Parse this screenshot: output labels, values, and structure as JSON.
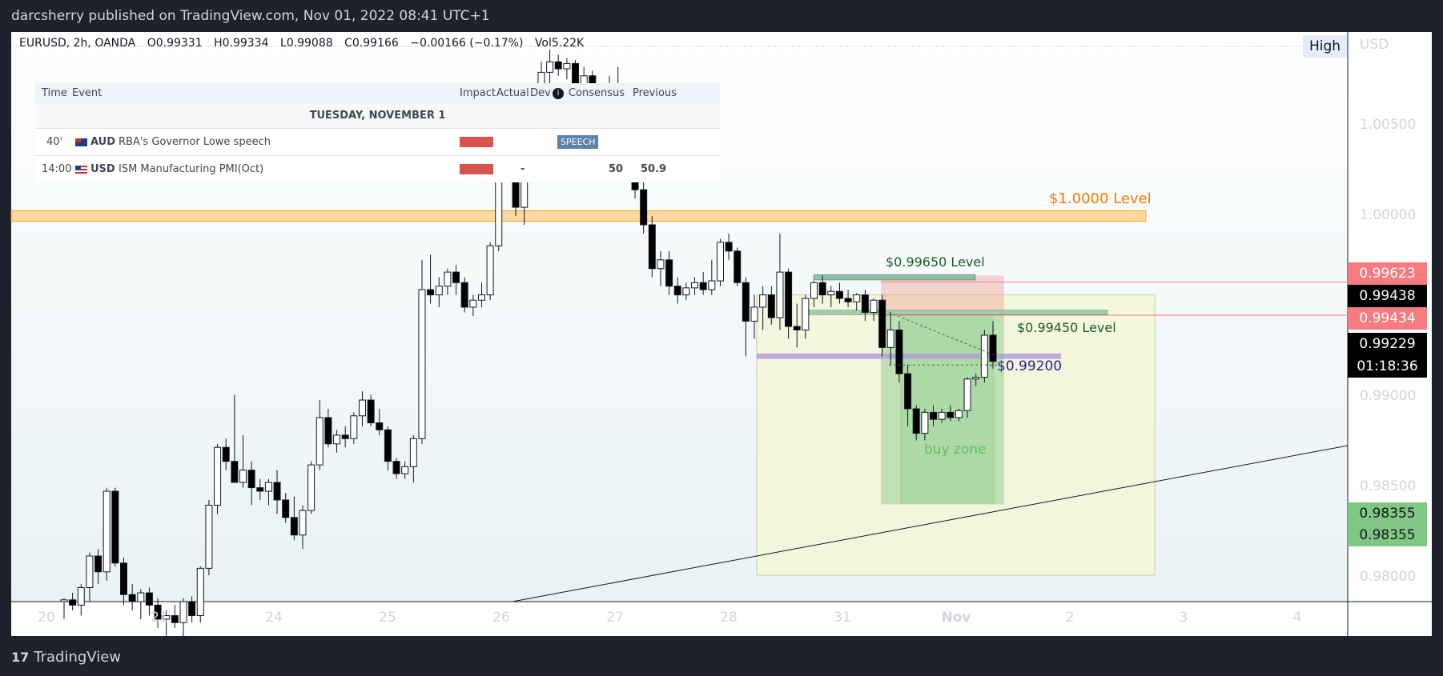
{
  "header": {
    "publisher_line": "darcsherry published on TradingView.com, Nov 01, 2022 08:41 UTC+1"
  },
  "legend": {
    "symbol": "EURUSD, 2h, OANDA",
    "open": "O0.99331",
    "high": "H0.99334",
    "low": "L0.99088",
    "close": "C0.99166",
    "change": "−0.00166 (−0.17%)",
    "volume": "Vol5.22K"
  },
  "events_table": {
    "headers": {
      "time": "Time",
      "event": "Event",
      "impact": "Impact",
      "actual": "Actual",
      "dev": "Dev",
      "consensus": "Consensus",
      "previous": "Previous"
    },
    "day": "TUESDAY, NOVEMBER 1",
    "rows": [
      {
        "time": "40'",
        "currency": "AUD",
        "event": "RBA's Governor Lowe speech",
        "tag": "SPEECH",
        "actual": "",
        "consensus": "",
        "previous": ""
      },
      {
        "time": "14:00",
        "currency": "USD",
        "event": "ISM Manufacturing PMI(Oct)",
        "tag": "",
        "actual": "-",
        "consensus": "50",
        "previous": "50.9"
      }
    ]
  },
  "toggle": {
    "high_label": "High"
  },
  "axis": {
    "currency": "USD"
  },
  "chart_data": {
    "type": "candlestick",
    "timeframe": "2h",
    "ylim": [
      0.978,
      1.0105
    ],
    "y_ticks": [
      "1.00500",
      "1.00000",
      "0.99000",
      "0.98500",
      "0.98000"
    ],
    "x_ticks": [
      "20",
      "21",
      "24",
      "25",
      "26",
      "27",
      "28",
      "31",
      "Nov",
      "2",
      "3",
      "4"
    ],
    "price_tags": [
      {
        "value": "0.99623",
        "color": "#f77c80"
      },
      {
        "value": "0.99438",
        "color": "#000000"
      },
      {
        "value": "0.99434",
        "color": "#f77c80"
      },
      {
        "value": "0.99229",
        "color": "#000000"
      },
      {
        "value": "01:18:36",
        "color": "#000000"
      },
      {
        "value": "0.98355",
        "color": "#81c784"
      },
      {
        "value": "0.98355",
        "color": "#81c784"
      }
    ],
    "levels": [
      {
        "label": "$1.0000 Level",
        "price": 1.0,
        "color": "#f57c00"
      },
      {
        "label": "$0.99650 Level",
        "price": 0.9965,
        "color": "#1b5e20"
      },
      {
        "label": "$0.99450 Level",
        "price": 0.9945,
        "color": "#1b5e20"
      },
      {
        "label": "$0.99200",
        "price": 0.992,
        "color": "#311b92"
      }
    ],
    "zone_label": "buy zone",
    "candles": [
      {
        "o": 0.978,
        "h": 0.9782,
        "l": 0.977,
        "c": 0.9781
      },
      {
        "o": 0.9781,
        "h": 0.9785,
        "l": 0.9775,
        "c": 0.9778
      },
      {
        "o": 0.9778,
        "h": 0.979,
        "l": 0.9772,
        "c": 0.9788
      },
      {
        "o": 0.9788,
        "h": 0.9808,
        "l": 0.978,
        "c": 0.9806
      },
      {
        "o": 0.9806,
        "h": 0.981,
        "l": 0.979,
        "c": 0.9797
      },
      {
        "o": 0.9797,
        "h": 0.9845,
        "l": 0.9792,
        "c": 0.9843
      },
      {
        "o": 0.9843,
        "h": 0.9845,
        "l": 0.98,
        "c": 0.9802
      },
      {
        "o": 0.9802,
        "h": 0.9805,
        "l": 0.9778,
        "c": 0.9784
      },
      {
        "o": 0.9784,
        "h": 0.979,
        "l": 0.9775,
        "c": 0.978
      },
      {
        "o": 0.978,
        "h": 0.9787,
        "l": 0.977,
        "c": 0.9785
      },
      {
        "o": 0.9785,
        "h": 0.9788,
        "l": 0.9772,
        "c": 0.9778
      },
      {
        "o": 0.9778,
        "h": 0.9782,
        "l": 0.9765,
        "c": 0.977
      },
      {
        "o": 0.977,
        "h": 0.9775,
        "l": 0.976,
        "c": 0.9772
      },
      {
        "o": 0.9772,
        "h": 0.9778,
        "l": 0.9765,
        "c": 0.9768
      },
      {
        "o": 0.9768,
        "h": 0.9782,
        "l": 0.976,
        "c": 0.978
      },
      {
        "o": 0.978,
        "h": 0.9783,
        "l": 0.9768,
        "c": 0.9772
      },
      {
        "o": 0.9772,
        "h": 0.98,
        "l": 0.9768,
        "c": 0.9799
      },
      {
        "o": 0.9799,
        "h": 0.9838,
        "l": 0.9795,
        "c": 0.9835
      },
      {
        "o": 0.9835,
        "h": 0.987,
        "l": 0.983,
        "c": 0.9868
      },
      {
        "o": 0.9868,
        "h": 0.9873,
        "l": 0.9855,
        "c": 0.986
      },
      {
        "o": 0.986,
        "h": 0.9898,
        "l": 0.985,
        "c": 0.9848
      },
      {
        "o": 0.9848,
        "h": 0.9875,
        "l": 0.9845,
        "c": 0.9855
      },
      {
        "o": 0.9855,
        "h": 0.986,
        "l": 0.9835,
        "c": 0.9845
      },
      {
        "o": 0.9845,
        "h": 0.985,
        "l": 0.9838,
        "c": 0.9843
      },
      {
        "o": 0.9843,
        "h": 0.985,
        "l": 0.9835,
        "c": 0.9848
      },
      {
        "o": 0.9848,
        "h": 0.9855,
        "l": 0.983,
        "c": 0.9838
      },
      {
        "o": 0.9838,
        "h": 0.9842,
        "l": 0.9825,
        "c": 0.9828
      },
      {
        "o": 0.9828,
        "h": 0.984,
        "l": 0.9815,
        "c": 0.9818
      },
      {
        "o": 0.9818,
        "h": 0.9835,
        "l": 0.981,
        "c": 0.9832
      },
      {
        "o": 0.9832,
        "h": 0.986,
        "l": 0.983,
        "c": 0.9858
      },
      {
        "o": 0.9858,
        "h": 0.9895,
        "l": 0.9855,
        "c": 0.9885
      },
      {
        "o": 0.9885,
        "h": 0.989,
        "l": 0.9868,
        "c": 0.987
      },
      {
        "o": 0.987,
        "h": 0.9878,
        "l": 0.9865,
        "c": 0.9875
      },
      {
        "o": 0.9875,
        "h": 0.988,
        "l": 0.9868,
        "c": 0.9873
      },
      {
        "o": 0.9873,
        "h": 0.9888,
        "l": 0.987,
        "c": 0.9886
      },
      {
        "o": 0.9886,
        "h": 0.99,
        "l": 0.988,
        "c": 0.9895
      },
      {
        "o": 0.9895,
        "h": 0.9898,
        "l": 0.988,
        "c": 0.9882
      },
      {
        "o": 0.9882,
        "h": 0.989,
        "l": 0.9875,
        "c": 0.9878
      },
      {
        "o": 0.9878,
        "h": 0.988,
        "l": 0.9855,
        "c": 0.986
      },
      {
        "o": 0.986,
        "h": 0.9862,
        "l": 0.985,
        "c": 0.9853
      },
      {
        "o": 0.9853,
        "h": 0.986,
        "l": 0.985,
        "c": 0.9857
      },
      {
        "o": 0.9857,
        "h": 0.9875,
        "l": 0.9848,
        "c": 0.9873
      },
      {
        "o": 0.9873,
        "h": 0.9975,
        "l": 0.987,
        "c": 0.9958
      },
      {
        "o": 0.9958,
        "h": 0.9978,
        "l": 0.995,
        "c": 0.9955
      },
      {
        "o": 0.9955,
        "h": 0.9965,
        "l": 0.9948,
        "c": 0.996
      },
      {
        "o": 0.996,
        "h": 0.997,
        "l": 0.9955,
        "c": 0.9968
      },
      {
        "o": 0.9968,
        "h": 0.9972,
        "l": 0.9955,
        "c": 0.9962
      },
      {
        "o": 0.9962,
        "h": 0.9965,
        "l": 0.9945,
        "c": 0.9948
      },
      {
        "o": 0.9948,
        "h": 0.9955,
        "l": 0.9943,
        "c": 0.9952
      },
      {
        "o": 0.9952,
        "h": 0.9962,
        "l": 0.9948,
        "c": 0.9955
      },
      {
        "o": 0.9955,
        "h": 0.9985,
        "l": 0.9952,
        "c": 0.9983
      },
      {
        "o": 0.9983,
        "h": 1.0045,
        "l": 0.998,
        "c": 1.004
      },
      {
        "o": 1.004,
        "h": 1.0048,
        "l": 1.002,
        "c": 1.0025
      },
      {
        "o": 1.0025,
        "h": 1.003,
        "l": 1.0,
        "c": 1.0005
      },
      {
        "o": 1.0005,
        "h": 1.004,
        "l": 0.9995,
        "c": 1.0035
      },
      {
        "o": 1.0035,
        "h": 1.0065,
        "l": 1.003,
        "c": 1.006
      },
      {
        "o": 1.006,
        "h": 1.0088,
        "l": 1.0055,
        "c": 1.0082
      },
      {
        "o": 1.0082,
        "h": 1.0095,
        "l": 1.0075,
        "c": 1.0088
      },
      {
        "o": 1.0088,
        "h": 1.0092,
        "l": 1.008,
        "c": 1.0084
      },
      {
        "o": 1.0084,
        "h": 1.009,
        "l": 1.0078,
        "c": 1.0087
      },
      {
        "o": 1.0087,
        "h": 1.0089,
        "l": 1.007,
        "c": 1.0075
      },
      {
        "o": 1.0075,
        "h": 1.0085,
        "l": 1.0072,
        "c": 1.008
      },
      {
        "o": 1.008,
        "h": 1.0083,
        "l": 1.0065,
        "c": 1.0068
      },
      {
        "o": 1.0068,
        "h": 1.0075,
        "l": 1.006,
        "c": 1.0072
      },
      {
        "o": 1.0072,
        "h": 1.008,
        "l": 1.0055,
        "c": 1.006
      },
      {
        "o": 1.006,
        "h": 1.0085,
        "l": 1.0045,
        "c": 1.0058
      },
      {
        "o": 1.0058,
        "h": 1.006,
        "l": 1.003,
        "c": 1.0035
      },
      {
        "o": 1.0035,
        "h": 1.004,
        "l": 1.001,
        "c": 1.0015
      },
      {
        "o": 1.0015,
        "h": 1.002,
        "l": 0.999,
        "c": 0.9995
      },
      {
        "o": 0.9995,
        "h": 1.0,
        "l": 0.9965,
        "c": 0.997
      },
      {
        "o": 0.997,
        "h": 0.998,
        "l": 0.996,
        "c": 0.9975
      },
      {
        "o": 0.9975,
        "h": 0.998,
        "l": 0.9955,
        "c": 0.996
      },
      {
        "o": 0.996,
        "h": 0.9965,
        "l": 0.995,
        "c": 0.9955
      },
      {
        "o": 0.9955,
        "h": 0.9962,
        "l": 0.9952,
        "c": 0.9959
      },
      {
        "o": 0.9959,
        "h": 0.9965,
        "l": 0.9955,
        "c": 0.9962
      },
      {
        "o": 0.9962,
        "h": 0.9968,
        "l": 0.9955,
        "c": 0.9958
      },
      {
        "o": 0.9958,
        "h": 0.9975,
        "l": 0.9955,
        "c": 0.9963
      },
      {
        "o": 0.9963,
        "h": 0.9987,
        "l": 0.996,
        "c": 0.9985
      },
      {
        "o": 0.9985,
        "h": 0.999,
        "l": 0.9975,
        "c": 0.998
      },
      {
        "o": 0.998,
        "h": 0.9982,
        "l": 0.996,
        "c": 0.9962
      },
      {
        "o": 0.9962,
        "h": 0.9965,
        "l": 0.992,
        "c": 0.994
      },
      {
        "o": 0.994,
        "h": 0.9955,
        "l": 0.993,
        "c": 0.9948
      },
      {
        "o": 0.9948,
        "h": 0.996,
        "l": 0.9935,
        "c": 0.9955
      },
      {
        "o": 0.9955,
        "h": 0.996,
        "l": 0.9938,
        "c": 0.9942
      },
      {
        "o": 0.9942,
        "h": 0.999,
        "l": 0.9935,
        "c": 0.9968
      },
      {
        "o": 0.9968,
        "h": 0.997,
        "l": 0.993,
        "c": 0.9937
      },
      {
        "o": 0.9937,
        "h": 0.995,
        "l": 0.9925,
        "c": 0.9935
      },
      {
        "o": 0.9935,
        "h": 0.9955,
        "l": 0.993,
        "c": 0.9953
      },
      {
        "o": 0.9953,
        "h": 0.9963,
        "l": 0.9948,
        "c": 0.9962
      },
      {
        "o": 0.9962,
        "h": 0.9966,
        "l": 0.995,
        "c": 0.9955
      },
      {
        "o": 0.9955,
        "h": 0.996,
        "l": 0.9948,
        "c": 0.9957
      },
      {
        "o": 0.9957,
        "h": 0.9962,
        "l": 0.995,
        "c": 0.9953
      },
      {
        "o": 0.9953,
        "h": 0.9958,
        "l": 0.9948,
        "c": 0.9951
      },
      {
        "o": 0.9951,
        "h": 0.9956,
        "l": 0.9946,
        "c": 0.9955
      },
      {
        "o": 0.9955,
        "h": 0.9958,
        "l": 0.994,
        "c": 0.9945
      },
      {
        "o": 0.9945,
        "h": 0.9953,
        "l": 0.994,
        "c": 0.9952
      },
      {
        "o": 0.9952,
        "h": 0.9955,
        "l": 0.992,
        "c": 0.9925
      },
      {
        "o": 0.9925,
        "h": 0.9945,
        "l": 0.9915,
        "c": 0.9935
      },
      {
        "o": 0.9935,
        "h": 0.994,
        "l": 0.9905,
        "c": 0.991
      },
      {
        "o": 0.991,
        "h": 0.9915,
        "l": 0.988,
        "c": 0.989
      },
      {
        "o": 0.989,
        "h": 0.9892,
        "l": 0.9872,
        "c": 0.9876
      },
      {
        "o": 0.9876,
        "h": 0.989,
        "l": 0.9872,
        "c": 0.9888
      },
      {
        "o": 0.9888,
        "h": 0.9892,
        "l": 0.988,
        "c": 0.9884
      },
      {
        "o": 0.9884,
        "h": 0.989,
        "l": 0.9882,
        "c": 0.9888
      },
      {
        "o": 0.9888,
        "h": 0.9892,
        "l": 0.9883,
        "c": 0.9885
      },
      {
        "o": 0.9885,
        "h": 0.989,
        "l": 0.9883,
        "c": 0.9889
      },
      {
        "o": 0.9889,
        "h": 0.9908,
        "l": 0.9885,
        "c": 0.9907
      },
      {
        "o": 0.9907,
        "h": 0.991,
        "l": 0.9903,
        "c": 0.9908
      },
      {
        "o": 0.9908,
        "h": 0.9935,
        "l": 0.9905,
        "c": 0.9932
      },
      {
        "o": 0.9932,
        "h": 0.994,
        "l": 0.9913,
        "c": 0.9917
      }
    ]
  }
}
